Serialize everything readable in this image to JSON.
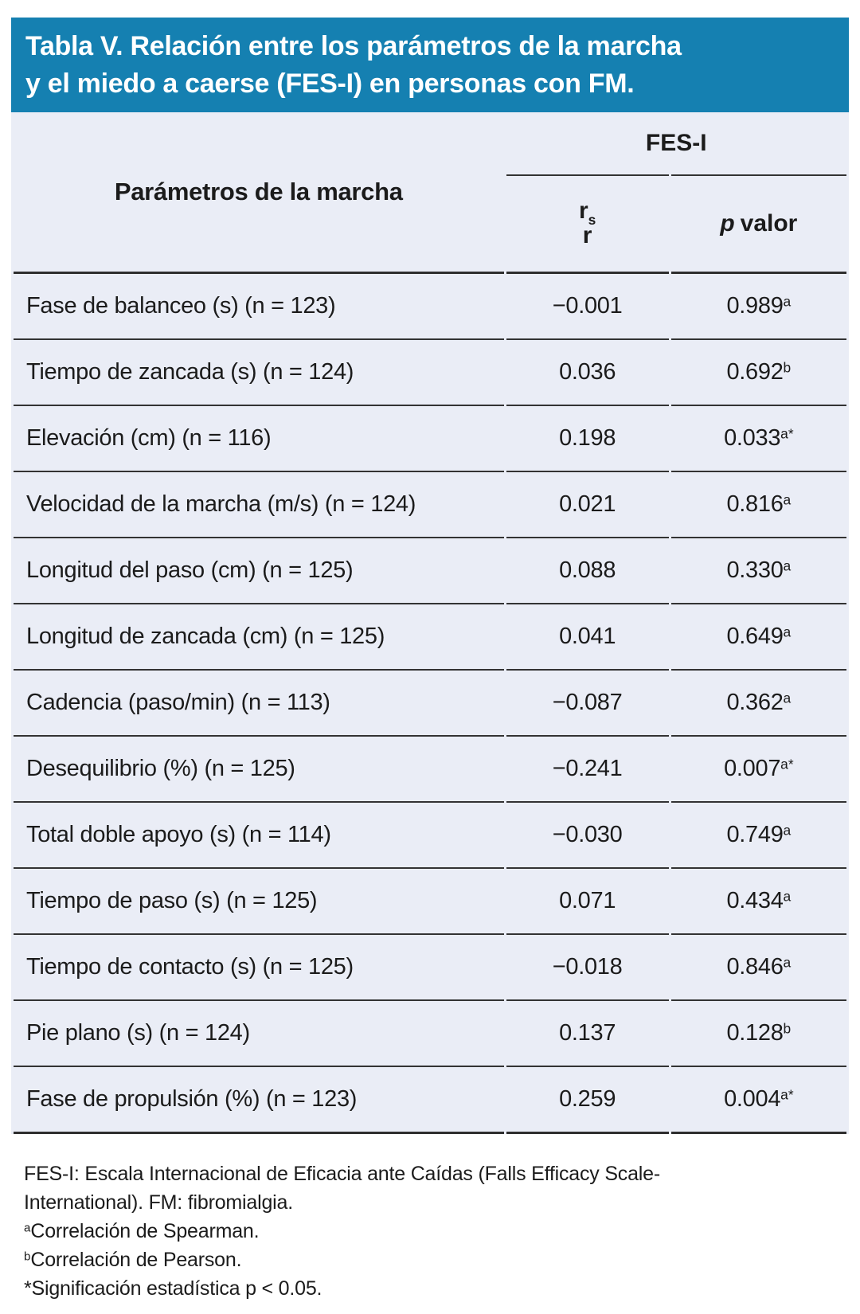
{
  "title": {
    "line1": "Tabla V. Relación entre los parámetros de la marcha",
    "line2": "y el miedo a caerse (FES-I) en personas con FM."
  },
  "colors": {
    "banner_bg": "#1580b1",
    "table_bg": "#eaedf6",
    "title_text": "#ffffff",
    "body_text": "#1b1b1b",
    "rule_line": "#333333"
  },
  "table": {
    "col1_header": "Parámetros de la marcha",
    "group_header": "FES-I",
    "col2_header": {
      "r_spearman": "r",
      "spearman_sub": "s",
      "r_pearson": "r"
    },
    "col3_header": {
      "p_italic": "p",
      "rest": "valor"
    },
    "rows": [
      {
        "label": "Fase de balanceo (s) (n = 123)",
        "r": "−0.001",
        "p": "0.989",
        "p_sup": "a"
      },
      {
        "label": "Tiempo de zancada (s) (n = 124)",
        "r": "0.036",
        "p": "0.692",
        "p_sup": "b"
      },
      {
        "label": "Elevación (cm) (n = 116)",
        "r": "0.198",
        "p": "0.033",
        "p_sup": "a*"
      },
      {
        "label": "Velocidad de la marcha (m/s) (n = 124)",
        "r": "0.021",
        "p": "0.816",
        "p_sup": "a"
      },
      {
        "label": "Longitud del paso (cm) (n = 125)",
        "r": "0.088",
        "p": "0.330",
        "p_sup": "a"
      },
      {
        "label": "Longitud de zancada (cm) (n = 125)",
        "r": "0.041",
        "p": "0.649",
        "p_sup": "a"
      },
      {
        "label": "Cadencia (paso/min) (n = 113)",
        "r": "−0.087",
        "p": "0.362",
        "p_sup": "a"
      },
      {
        "label": "Desequilibrio (%) (n = 125)",
        "r": "−0.241",
        "p": "0.007",
        "p_sup": "a*"
      },
      {
        "label": "Total doble apoyo (s) (n = 114)",
        "r": "−0.030",
        "p": "0.749",
        "p_sup": "a"
      },
      {
        "label": "Tiempo de paso (s) (n = 125)",
        "r": "0.071",
        "p": "0.434",
        "p_sup": "a"
      },
      {
        "label": "Tiempo de contacto (s) (n = 125)",
        "r": "−0.018",
        "p": "0.846",
        "p_sup": "a"
      },
      {
        "label": "Pie plano (s) (n = 124)",
        "r": "0.137",
        "p": "0.128",
        "p_sup": "b"
      },
      {
        "label": "Fase de propulsión (%) (n = 123)",
        "r": "0.259",
        "p": "0.004",
        "p_sup": "a*"
      }
    ]
  },
  "footnotes": [
    {
      "sup": "",
      "text": "FES-I: Escala Internacional de Eficacia ante Caídas (Falls Efficacy Scale-International). FM: fibromialgia."
    },
    {
      "sup": "a",
      "text": "Correlación de Spearman."
    },
    {
      "sup": "b",
      "text": "Correlación de Pearson."
    },
    {
      "sup": "",
      "text": "*Significación estadística p < 0.05."
    }
  ]
}
